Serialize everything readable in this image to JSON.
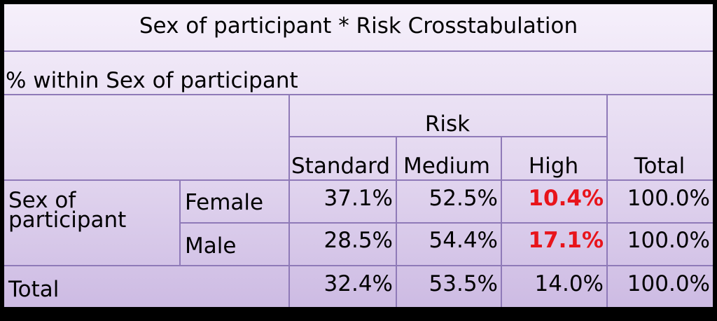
{
  "table": {
    "title": "Sex of participant * Risk Crosstabulation",
    "subtitle": "% within Sex of participant",
    "risk_header": "Risk",
    "columns": [
      "Standard",
      "Medium",
      "High",
      "Total"
    ],
    "row_group_label": [
      "Sex of",
      "participant"
    ],
    "rows": [
      {
        "label": "Female",
        "values": [
          "37.1%",
          "52.5%",
          "10.4%",
          "100.0%"
        ]
      },
      {
        "label": "Male",
        "values": [
          "28.5%",
          "54.4%",
          "17.1%",
          "100.0%"
        ]
      }
    ],
    "total_row": {
      "label": "Total",
      "values": [
        "32.4%",
        "53.5%",
        "14.0%",
        "100.0%"
      ]
    },
    "highlight_color": "#e8141b"
  }
}
